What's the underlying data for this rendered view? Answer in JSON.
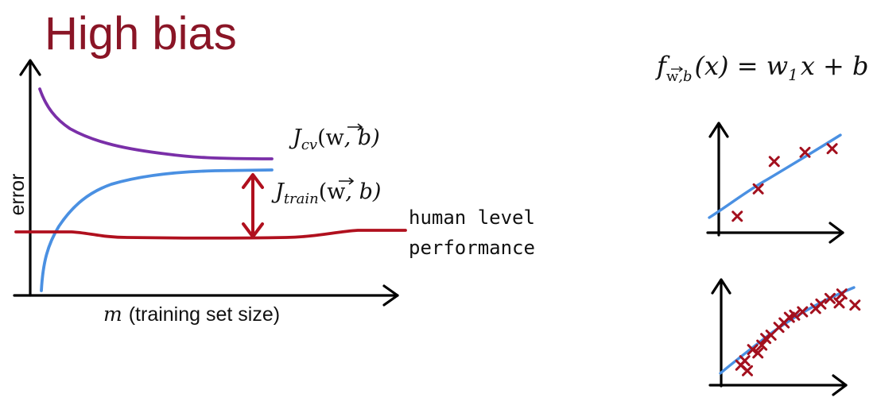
{
  "title": "High bias",
  "learning_curve": {
    "y_axis_label": "error",
    "x_axis_label": "(training set size)",
    "x_axis_var": "m",
    "cv_label": {
      "J": "J",
      "sub": "cv",
      "args_open": "(",
      "w": "w",
      "args_rest": ", b)"
    },
    "train_label": {
      "J": "J",
      "sub": "train",
      "args_open": "(",
      "w": "w",
      "args_rest": ", b)"
    },
    "human_level_label": [
      "human level",
      "performance"
    ],
    "colors": {
      "cv": "#7a2fa8",
      "train": "#4a90e2",
      "human": "#b0101e",
      "gap_arrow": "#b0101e"
    }
  },
  "model_formula": {
    "f": "f",
    "sub_w": "w",
    "sub_rest": ",b",
    "rest": "(x) = w",
    "w_sub": "1",
    "tail": "x + b"
  },
  "scatter_plots": {
    "point_color": "#a3101e",
    "line_color": "#4a90e2",
    "small_plot_points": [
      [
        0.15,
        0.18
      ],
      [
        0.32,
        0.48
      ],
      [
        0.45,
        0.78
      ],
      [
        0.7,
        0.88
      ],
      [
        0.92,
        0.92
      ]
    ],
    "large_plot_points": [
      [
        0.15,
        0.18
      ],
      [
        0.18,
        0.22
      ],
      [
        0.2,
        0.13
      ],
      [
        0.24,
        0.32
      ],
      [
        0.28,
        0.29
      ],
      [
        0.31,
        0.36
      ],
      [
        0.34,
        0.42
      ],
      [
        0.38,
        0.45
      ],
      [
        0.44,
        0.52
      ],
      [
        0.48,
        0.56
      ],
      [
        0.52,
        0.61
      ],
      [
        0.56,
        0.63
      ],
      [
        0.62,
        0.66
      ],
      [
        0.72,
        0.69
      ],
      [
        0.76,
        0.73
      ],
      [
        0.83,
        0.78
      ],
      [
        0.9,
        0.74
      ],
      [
        0.92,
        0.82
      ],
      [
        1.02,
        0.72
      ]
    ]
  }
}
